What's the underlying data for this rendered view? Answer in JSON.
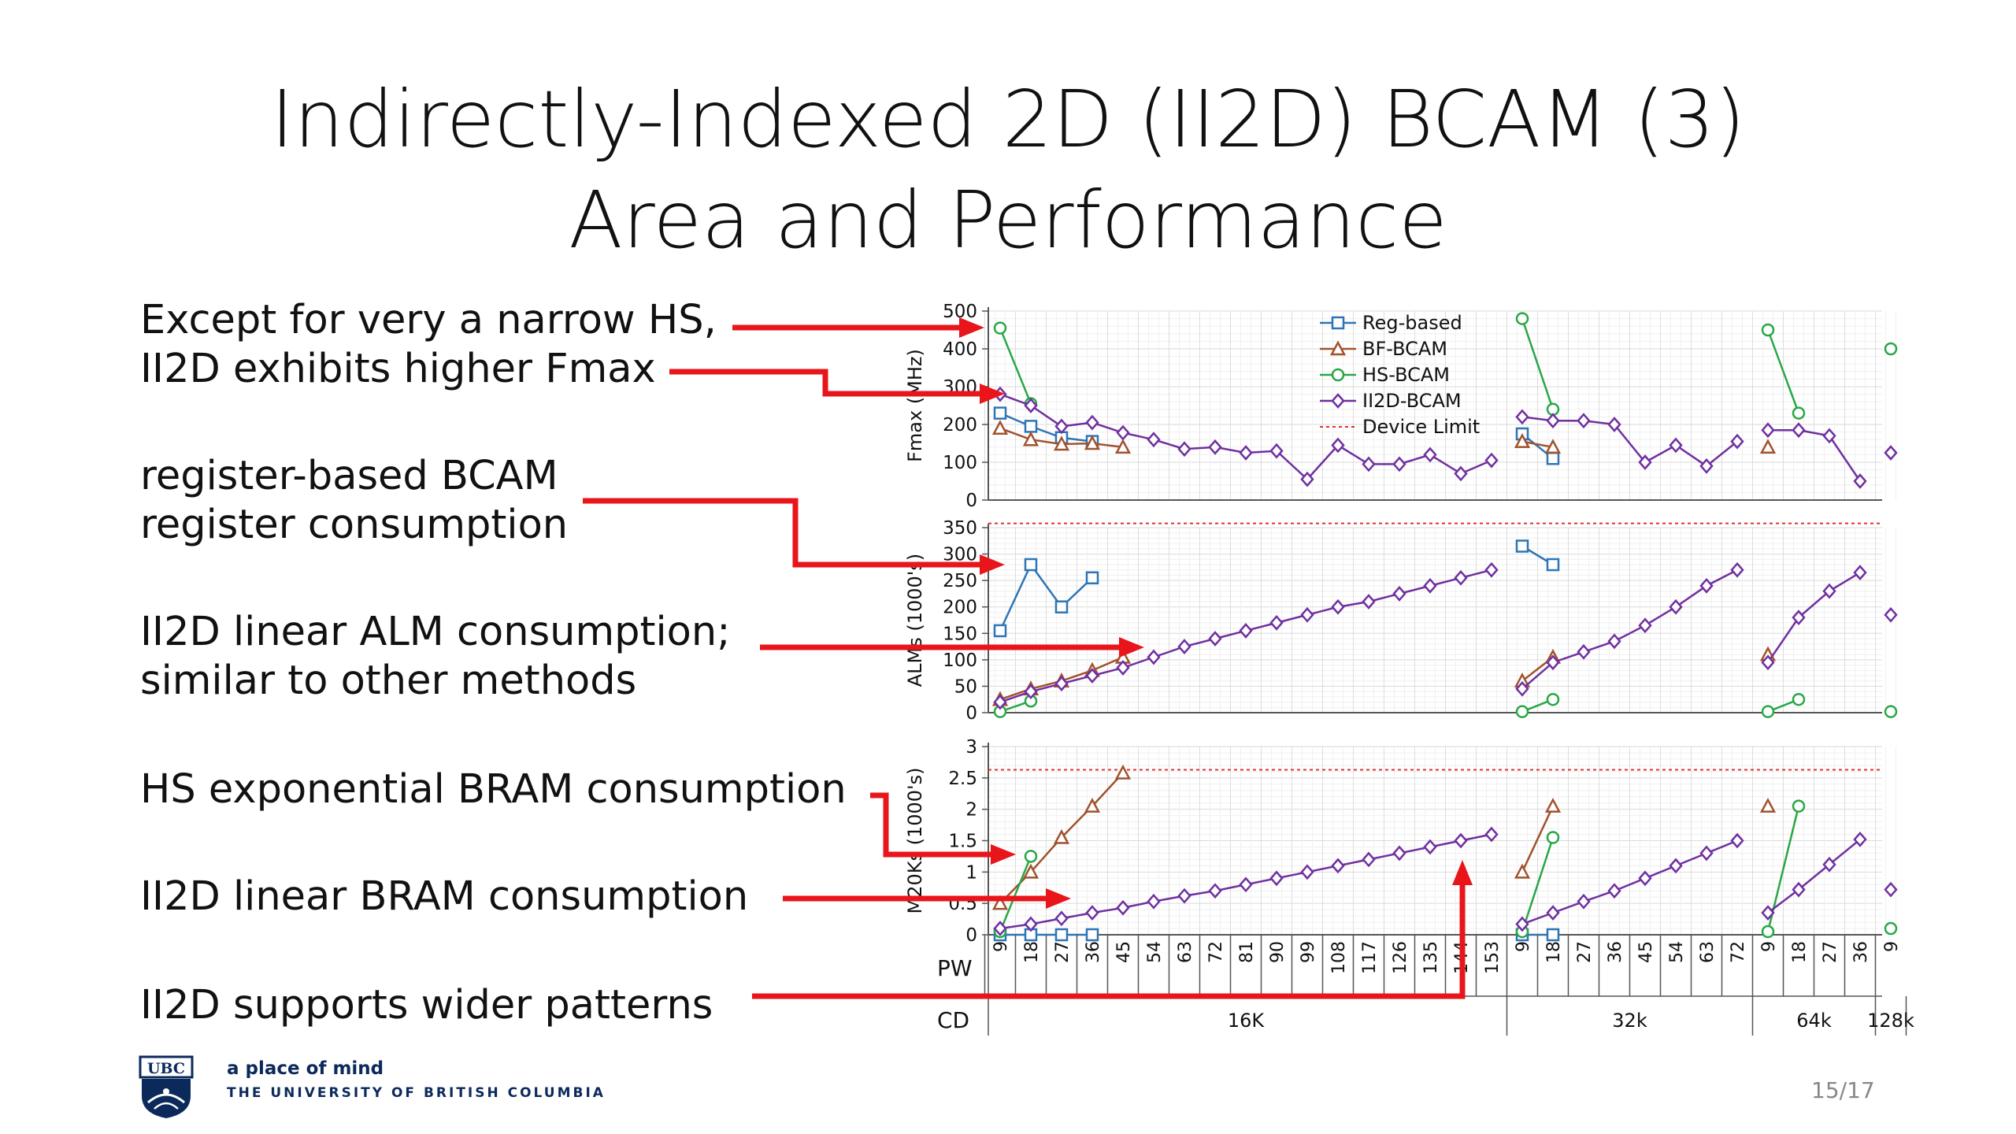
{
  "slide": {
    "title_line1": "Indirectly-Indexed 2D (II2D) BCAM (3)",
    "title_line2": "Area and Performance",
    "bullets": [
      "Except for very a narrow HS,",
      "II2D exhibits higher Fmax",
      "register-based BCAM",
      "register consumption",
      "II2D linear ALM consumption;",
      "similar to other methods",
      "HS exponential BRAM consumption",
      "II2D linear BRAM consumption",
      "II2D supports wider patterns"
    ],
    "logo_tagline": "a place of mind",
    "logo_university": "THE UNIVERSITY OF BRITISH COLUMBIA",
    "logo_badge": "UBC",
    "page_number": "15/17"
  },
  "colors": {
    "reg": "#2e75b6",
    "bf": "#a0522d",
    "hs": "#28a745",
    "ii2d": "#7030a0",
    "device_limit": "#e03030",
    "arrow": "#e8161b",
    "grid": "#e6e6e6"
  },
  "chart_data": {
    "type": "line",
    "x_axis": {
      "row1_label": "PW",
      "row2_label": "CD",
      "pw_ticks": [
        "9",
        "18",
        "27",
        "36",
        "45",
        "54",
        "63",
        "72",
        "81",
        "90",
        "99",
        "108",
        "117",
        "126",
        "135",
        "144",
        "153",
        "9",
        "18",
        "27",
        "36",
        "45",
        "54",
        "63",
        "72",
        "9",
        "18",
        "27",
        "36",
        "9"
      ],
      "groups": [
        {
          "label": "16K",
          "from": 0,
          "to": 16
        },
        {
          "label": "32k",
          "from": 17,
          "to": 24
        },
        {
          "label": "64k",
          "from": 25,
          "to": 28
        },
        {
          "label": "128k",
          "from": 29,
          "to": 29
        }
      ]
    },
    "legend": [
      "Reg-based",
      "BF-BCAM",
      "HS-BCAM",
      "II2D-BCAM",
      "Device Limit"
    ],
    "panels": [
      {
        "ylabel": "Fmax (MHz)",
        "ylim": [
          0,
          500
        ],
        "yticks": [
          "0",
          "100",
          "200",
          "300",
          "400",
          "500"
        ],
        "device_limit": null,
        "series": {
          "reg": [
            [
              [
                0,
                230
              ],
              [
                1,
                195
              ],
              [
                2,
                165
              ],
              [
                3,
                155
              ]
            ],
            [
              [
                17,
                175
              ],
              [
                18,
                110
              ]
            ]
          ],
          "bf": [
            [
              [
                0,
                190
              ],
              [
                1,
                160
              ],
              [
                2,
                148
              ],
              [
                3,
                150
              ],
              [
                4,
                140
              ]
            ],
            [
              [
                17,
                155
              ],
              [
                18,
                140
              ]
            ],
            [
              [
                25,
                140
              ]
            ]
          ],
          "hs": [
            [
              [
                0,
                455
              ],
              [
                1,
                255
              ]
            ],
            [
              [
                17,
                480
              ],
              [
                18,
                240
              ]
            ],
            [
              [
                25,
                450
              ],
              [
                26,
                230
              ]
            ],
            [
              [
                29,
                400
              ]
            ]
          ],
          "ii2d": [
            [
              [
                0,
                280
              ],
              [
                1,
                250
              ],
              [
                2,
                195
              ],
              [
                3,
                205
              ],
              [
                4,
                178
              ],
              [
                5,
                160
              ],
              [
                6,
                135
              ],
              [
                7,
                140
              ],
              [
                8,
                125
              ],
              [
                9,
                130
              ],
              [
                10,
                55
              ],
              [
                11,
                145
              ],
              [
                12,
                95
              ],
              [
                13,
                95
              ],
              [
                14,
                120
              ],
              [
                15,
                70
              ],
              [
                16,
                105
              ]
            ],
            [
              [
                17,
                220
              ],
              [
                18,
                210
              ],
              [
                19,
                210
              ],
              [
                20,
                200
              ],
              [
                21,
                100
              ],
              [
                22,
                145
              ],
              [
                23,
                90
              ],
              [
                24,
                155
              ]
            ],
            [
              [
                25,
                185
              ],
              [
                26,
                185
              ],
              [
                27,
                170
              ],
              [
                28,
                50
              ]
            ],
            [
              [
                29,
                125
              ]
            ]
          ]
        }
      },
      {
        "ylabel": "ALMs (1000's)",
        "ylim": [
          0,
          350
        ],
        "yticks": [
          "0",
          "50",
          "100",
          "150",
          "200",
          "250",
          "300",
          "350"
        ],
        "device_limit": 358,
        "series": {
          "reg": [
            [
              [
                0,
                155
              ],
              [
                1,
                280
              ],
              [
                2,
                200
              ],
              [
                3,
                255
              ]
            ],
            [
              [
                17,
                315
              ],
              [
                18,
                280
              ]
            ]
          ],
          "bf": [
            [
              [
                0,
                25
              ],
              [
                1,
                45
              ],
              [
                2,
                60
              ],
              [
                3,
                80
              ],
              [
                4,
                105
              ]
            ],
            [
              [
                17,
                60
              ],
              [
                18,
                105
              ]
            ],
            [
              [
                25,
                110
              ]
            ]
          ],
          "hs": [
            [
              [
                0,
                2
              ],
              [
                1,
                22
              ]
            ],
            [
              [
                17,
                2
              ],
              [
                18,
                25
              ]
            ],
            [
              [
                25,
                2
              ],
              [
                26,
                25
              ]
            ],
            [
              [
                29,
                2
              ]
            ]
          ],
          "ii2d": [
            [
              [
                0,
                20
              ],
              [
                1,
                40
              ],
              [
                2,
                55
              ],
              [
                3,
                70
              ],
              [
                4,
                85
              ],
              [
                5,
                105
              ],
              [
                6,
                125
              ],
              [
                7,
                140
              ],
              [
                8,
                155
              ],
              [
                9,
                170
              ],
              [
                10,
                185
              ],
              [
                11,
                200
              ],
              [
                12,
                210
              ],
              [
                13,
                225
              ],
              [
                14,
                240
              ],
              [
                15,
                255
              ],
              [
                16,
                270
              ]
            ],
            [
              [
                17,
                45
              ],
              [
                18,
                95
              ],
              [
                19,
                115
              ],
              [
                20,
                135
              ],
              [
                21,
                165
              ],
              [
                22,
                200
              ],
              [
                23,
                240
              ],
              [
                24,
                270
              ]
            ],
            [
              [
                25,
                95
              ],
              [
                26,
                180
              ],
              [
                27,
                230
              ],
              [
                28,
                265
              ]
            ],
            [
              [
                29,
                185
              ]
            ]
          ]
        }
      },
      {
        "ylabel": "M20Ks (1000's)",
        "ylim": [
          0,
          3
        ],
        "yticks": [
          "0",
          "0.5",
          "1",
          "1.5",
          "2",
          "2.5",
          "3"
        ],
        "device_limit": 2.63,
        "series": {
          "reg": [
            [
              [
                0,
                0
              ],
              [
                1,
                0
              ],
              [
                2,
                0
              ],
              [
                3,
                0
              ]
            ],
            [
              [
                17,
                0
              ],
              [
                18,
                0
              ]
            ]
          ],
          "bf": [
            [
              [
                0,
                0.5
              ],
              [
                1,
                1.0
              ],
              [
                2,
                1.55
              ],
              [
                3,
                2.05
              ],
              [
                4,
                2.58
              ]
            ],
            [
              [
                17,
                1.0
              ],
              [
                18,
                2.05
              ]
            ],
            [
              [
                25,
                2.05
              ]
            ]
          ],
          "hs": [
            [
              [
                0,
                0.05
              ],
              [
                1,
                1.25
              ]
            ],
            [
              [
                17,
                0.05
              ],
              [
                18,
                1.55
              ]
            ],
            [
              [
                25,
                0.05
              ],
              [
                26,
                2.05
              ]
            ],
            [
              [
                29,
                0.1
              ]
            ]
          ],
          "ii2d": [
            [
              [
                0,
                0.1
              ],
              [
                1,
                0.17
              ],
              [
                2,
                0.26
              ],
              [
                3,
                0.35
              ],
              [
                4,
                0.43
              ],
              [
                5,
                0.53
              ],
              [
                6,
                0.62
              ],
              [
                7,
                0.7
              ],
              [
                8,
                0.8
              ],
              [
                9,
                0.9
              ],
              [
                10,
                1.0
              ],
              [
                11,
                1.1
              ],
              [
                12,
                1.2
              ],
              [
                13,
                1.3
              ],
              [
                14,
                1.4
              ],
              [
                15,
                1.5
              ],
              [
                16,
                1.6
              ]
            ],
            [
              [
                17,
                0.17
              ],
              [
                18,
                0.35
              ],
              [
                19,
                0.53
              ],
              [
                20,
                0.7
              ],
              [
                21,
                0.9
              ],
              [
                22,
                1.1
              ],
              [
                23,
                1.3
              ],
              [
                24,
                1.5
              ]
            ],
            [
              [
                25,
                0.35
              ],
              [
                26,
                0.72
              ],
              [
                27,
                1.12
              ],
              [
                28,
                1.52
              ]
            ],
            [
              [
                29,
                0.72
              ]
            ]
          ]
        }
      }
    ]
  }
}
